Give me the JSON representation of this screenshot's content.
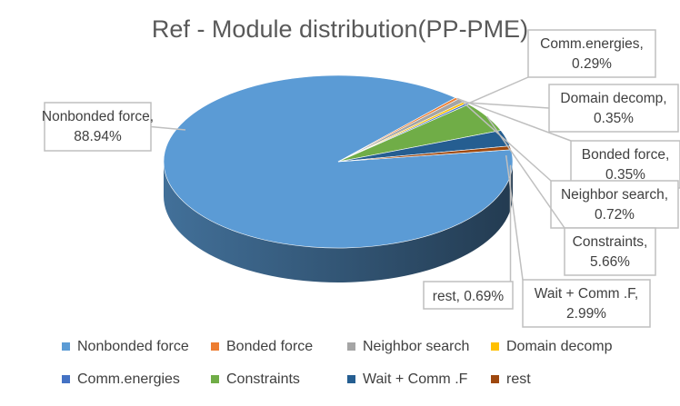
{
  "chart_data": {
    "type": "pie",
    "style": "3d-exploded-none",
    "title": "Ref - Module distribution(PP-PME)",
    "slices": [
      {
        "name": "Nonbonded force",
        "value": 88.94,
        "label": "Nonbonded force, 88.94%",
        "color": "#5b9bd5"
      },
      {
        "name": "Bonded force",
        "value": 0.35,
        "label": "Bonded force, 0.35%",
        "color": "#ed7d31"
      },
      {
        "name": "Neighbor search",
        "value": 0.72,
        "label": "Neighbor search, 0.72%",
        "color": "#a5a5a5"
      },
      {
        "name": "Domain decomp",
        "value": 0.35,
        "label": "Domain decomp, 0.35%",
        "color": "#ffc000"
      },
      {
        "name": "Comm.energies",
        "value": 0.29,
        "label": "Comm.energies, 0.29%",
        "color": "#4472c4"
      },
      {
        "name": "Constraints",
        "value": 5.66,
        "label": "Constraints, 5.66%",
        "color": "#70ad47"
      },
      {
        "name": "Wait + Comm .F",
        "value": 2.99,
        "label": "Wait + Comm .F, 2.99%",
        "color": "#255e91"
      },
      {
        "name": "rest",
        "value": 0.69,
        "label": "rest, 0.69%",
        "color": "#9e480e"
      }
    ],
    "legend": {
      "placement": "bottom",
      "items": [
        "Nonbonded force",
        "Bonded force",
        "Neighbor search",
        "Domain decomp",
        "Comm.energies",
        "Constraints",
        "Wait + Comm .F",
        "rest"
      ]
    }
  }
}
